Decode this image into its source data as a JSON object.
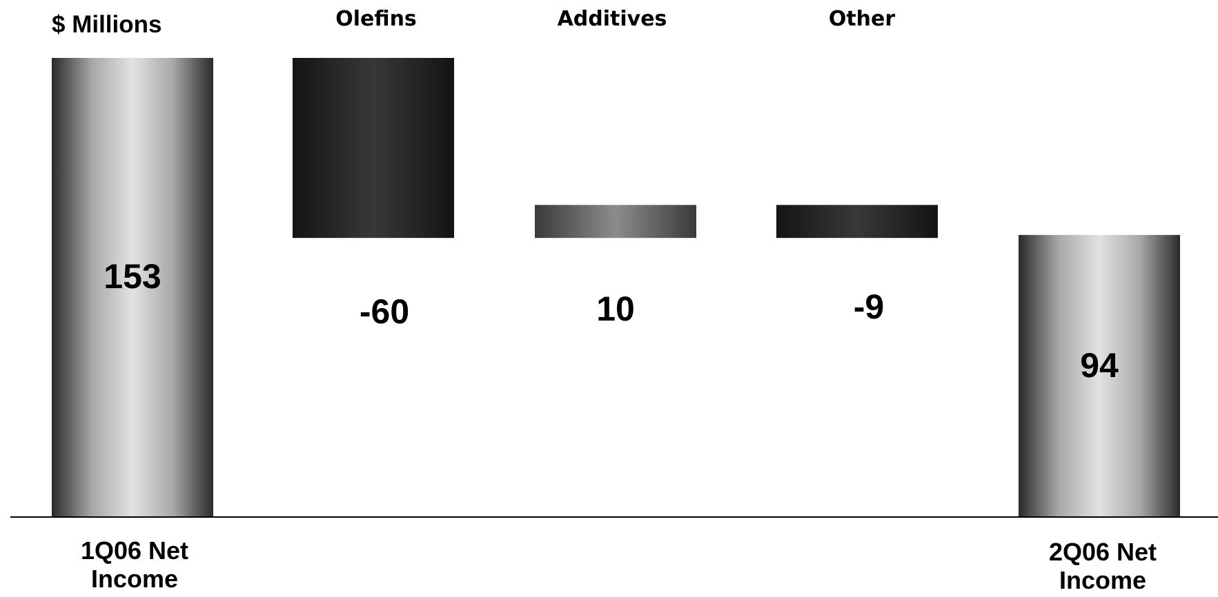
{
  "chart_data": {
    "type": "bar",
    "subtype": "waterfall",
    "units_label": "$ Millions",
    "categories": [
      "1Q06 Net Income",
      "Olefins",
      "Additives",
      "Other",
      "2Q06 Net Income"
    ],
    "category_lines": [
      [
        "1Q06 Net",
        "Income"
      ],
      [
        "Olefins"
      ],
      [
        "Additives"
      ],
      [
        "Other"
      ],
      [
        "2Q06 Net",
        "Income"
      ]
    ],
    "values": [
      153,
      -60,
      10,
      -9,
      94
    ],
    "value_labels": [
      "153",
      "-60",
      "10",
      "-9",
      "94"
    ],
    "kinds": [
      "total",
      "change",
      "change",
      "change",
      "total"
    ],
    "colors": {
      "total": "#d9d9d9",
      "decrease": "#2b2b2b",
      "increase": "#7f7f7f"
    },
    "grid": false,
    "legend": "none"
  }
}
